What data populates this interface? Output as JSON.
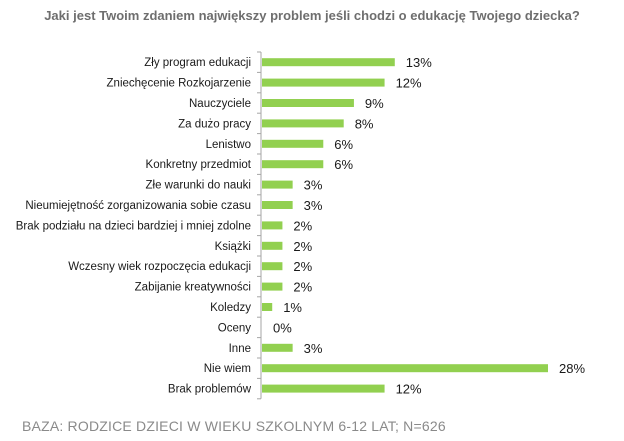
{
  "chart_data": {
    "type": "bar",
    "orientation": "horizontal",
    "title": "Jaki jest Twoim zdaniem największy problem jeśli chodzi o edukację Twojego dziecka?",
    "categories": [
      "Zły program edukacji",
      "Zniechęcenie Rozkojarzenie",
      "Nauczyciele",
      "Za dużo pracy",
      "Lenistwo",
      "Konkretny przedmiot",
      "Złe warunki do nauki",
      "Nieumiejętność zorganizowania sobie czasu",
      "Brak podziału na dzieci bardziej i mniej zdolne",
      "Książki",
      "Wczesny wiek rozpoczęcia edukacji",
      "Zabijanie kreatywności",
      "Koledzy",
      "Oceny",
      "Inne",
      "Nie wiem",
      "Brak problemów"
    ],
    "values": [
      13,
      12,
      9,
      8,
      6,
      6,
      3,
      3,
      2,
      2,
      2,
      2,
      1,
      0,
      3,
      28,
      12
    ],
    "value_labels": [
      "13%",
      "12%",
      "9%",
      "8%",
      "6%",
      "6%",
      "3%",
      "3%",
      "2%",
      "2%",
      "2%",
      "2%",
      "1%",
      "0%",
      "3%",
      "28%",
      "12%"
    ],
    "unit": "%",
    "xlim": [
      0,
      28
    ],
    "grid": false,
    "bar_color": "#92d050",
    "axis_color": "#a6a6a6",
    "footer": "BAZA: RODZICE DZIECI W WIEKU SZKOLNYM 6-12 LAT; N=626"
  }
}
